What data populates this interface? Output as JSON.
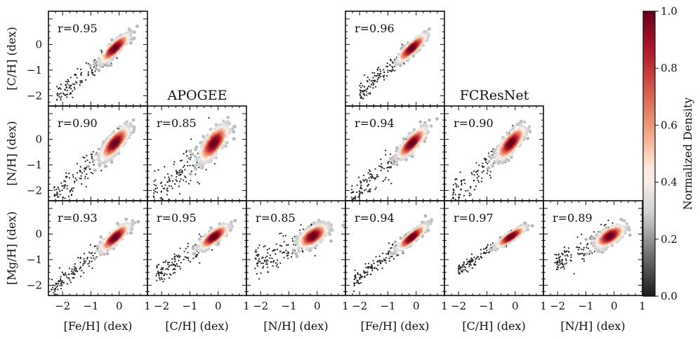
{
  "figure": {
    "group_titles": [
      "APOGEE",
      "FCResNet"
    ],
    "colorbar": {
      "label": "Normalized Density",
      "ticks": [
        "0.0",
        "0.2",
        "0.4",
        "0.6",
        "0.8",
        "1.0"
      ],
      "range": [
        0.0,
        1.0
      ],
      "colormap": [
        "#1a1a1a",
        "#6e6e6e",
        "#cfcfcf",
        "#fff4ee",
        "#f4a582",
        "#d6604d",
        "#b2182b",
        "#67001f"
      ]
    }
  },
  "chart_data": {
    "type": "scatter",
    "description_of_marks": "density-colored scatter of predicted vs reference abundances",
    "x_ticks": [
      "−2",
      "−1",
      "0",
      "1"
    ],
    "y_ticks": [
      "−2",
      "−1",
      "0"
    ],
    "xlim": [
      -2.5,
      1.0
    ],
    "ylim": [
      -2.4,
      1.3
    ],
    "x_labels": [
      "[Fe/H] (dex)",
      "[C/H] (dex)",
      "[N/H] (dex)",
      "[Fe/H] (dex)",
      "[C/H] (dex)",
      "[N/H] (dex)"
    ],
    "y_labels": [
      "[C/H] (dex)",
      "[N/H] (dex)",
      "[Mg/H] (dex)"
    ],
    "panels": [
      {
        "group": "APOGEE",
        "row": 0,
        "col": 0,
        "x": "[Fe/H]",
        "y": "[C/H]",
        "r_text": "r=0.95",
        "slope": 0.95,
        "spread": 0.13,
        "tail_min": -2.2
      },
      {
        "group": "APOGEE",
        "row": 1,
        "col": 0,
        "x": "[Fe/H]",
        "y": "[N/H]",
        "r_text": "r=0.90",
        "slope": 1.0,
        "spread": 0.2,
        "tail_min": -2.3
      },
      {
        "group": "APOGEE",
        "row": 1,
        "col": 1,
        "x": "[C/H]",
        "y": "[N/H]",
        "r_text": "r=0.85",
        "slope": 1.0,
        "spread": 0.25,
        "tail_min": -2.3
      },
      {
        "group": "APOGEE",
        "row": 2,
        "col": 0,
        "x": "[Fe/H]",
        "y": "[Mg/H]",
        "r_text": "r=0.93",
        "slope": 0.9,
        "spread": 0.13,
        "tail_min": -2.4
      },
      {
        "group": "APOGEE",
        "row": 2,
        "col": 1,
        "x": "[C/H]",
        "y": "[Mg/H]",
        "r_text": "r=0.95",
        "slope": 0.75,
        "spread": 0.13,
        "tail_min": -2.2
      },
      {
        "group": "APOGEE",
        "row": 2,
        "col": 2,
        "x": "[N/H]",
        "y": "[Mg/H]",
        "r_text": "r=0.85",
        "slope": 0.55,
        "spread": 0.18,
        "tail_min": -2.2
      },
      {
        "group": "FCResNet",
        "row": 0,
        "col": 3,
        "x": "[Fe/H]",
        "y": "[C/H]",
        "r_text": "r=0.96",
        "slope": 0.95,
        "spread": 0.12,
        "tail_min": -2.0
      },
      {
        "group": "FCResNet",
        "row": 1,
        "col": 3,
        "x": "[Fe/H]",
        "y": "[N/H]",
        "r_text": "r=0.94",
        "slope": 1.0,
        "spread": 0.16,
        "tail_min": -2.3
      },
      {
        "group": "FCResNet",
        "row": 1,
        "col": 4,
        "x": "[C/H]",
        "y": "[N/H]",
        "r_text": "r=0.90",
        "slope": 1.0,
        "spread": 0.2,
        "tail_min": -2.2
      },
      {
        "group": "FCResNet",
        "row": 2,
        "col": 3,
        "x": "[Fe/H]",
        "y": "[Mg/H]",
        "r_text": "r=0.94",
        "slope": 0.85,
        "spread": 0.1,
        "tail_min": -2.2
      },
      {
        "group": "FCResNet",
        "row": 2,
        "col": 4,
        "x": "[C/H]",
        "y": "[Mg/H]",
        "r_text": "r=0.97",
        "slope": 0.7,
        "spread": 0.08,
        "tail_min": -2.0
      },
      {
        "group": "FCResNet",
        "row": 2,
        "col": 5,
        "x": "[N/H]",
        "y": "[Mg/H]",
        "r_text": "r=0.89",
        "slope": 0.55,
        "spread": 0.16,
        "tail_min": -2.1
      }
    ]
  }
}
